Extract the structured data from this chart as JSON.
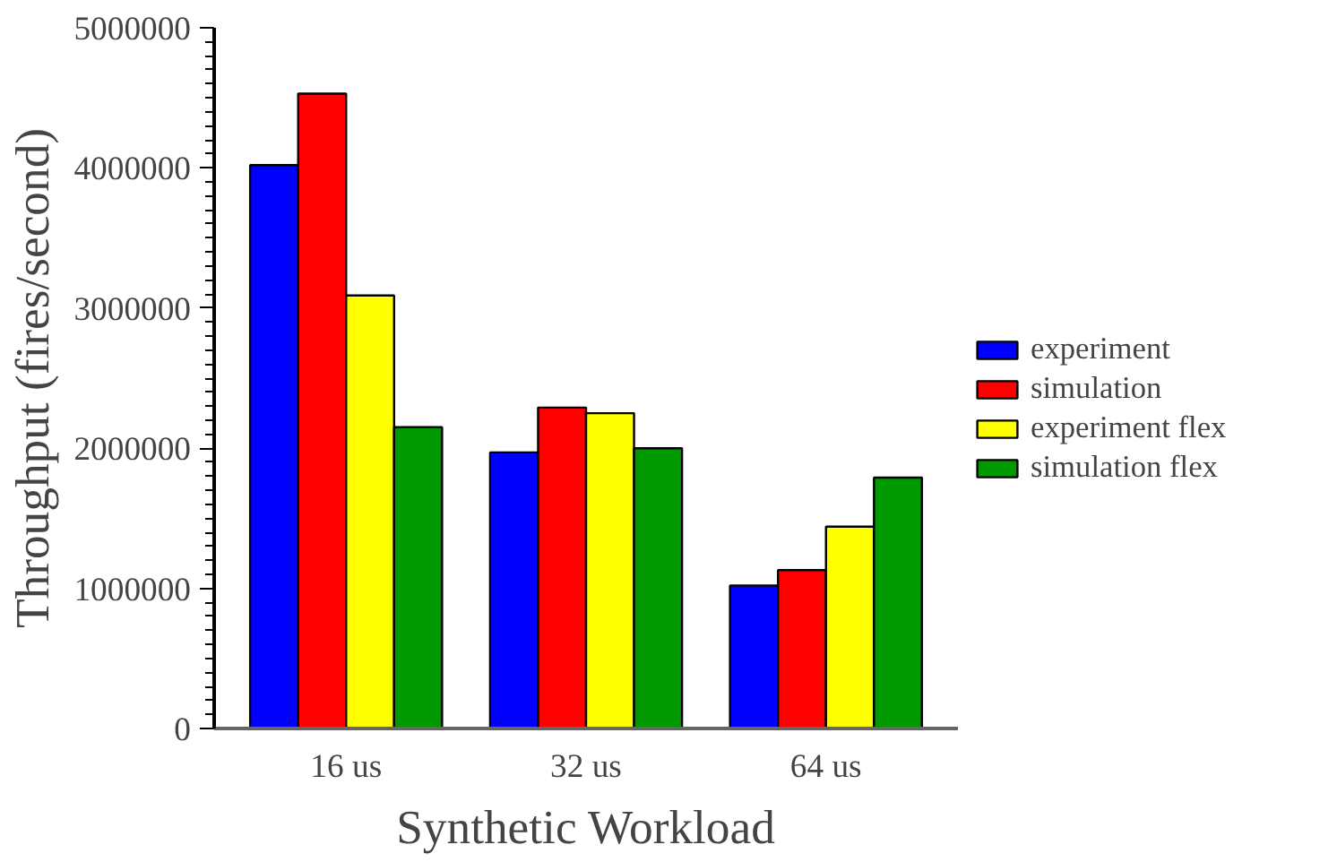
{
  "chart_data": {
    "type": "bar",
    "xlabel": "Synthetic Workload",
    "ylabel": "Throughput (fires/second)",
    "categories": [
      "16 us",
      "32 us",
      "64 us"
    ],
    "series": [
      {
        "name": "experiment",
        "color": "#0000ff",
        "values": [
          4020000,
          1970000,
          1020000
        ]
      },
      {
        "name": "simulation",
        "color": "#ff0000",
        "values": [
          4530000,
          2290000,
          1130000
        ]
      },
      {
        "name": "experiment flex",
        "color": "#ffff00",
        "values": [
          3090000,
          2250000,
          1440000
        ]
      },
      {
        "name": "simulation flex",
        "color": "#009900",
        "values": [
          2150000,
          2000000,
          1790000
        ]
      }
    ],
    "ylim": [
      0,
      5000000
    ],
    "yticks": [
      0,
      1000000,
      2000000,
      3000000,
      4000000,
      5000000
    ],
    "grid": false,
    "legend": "right"
  }
}
